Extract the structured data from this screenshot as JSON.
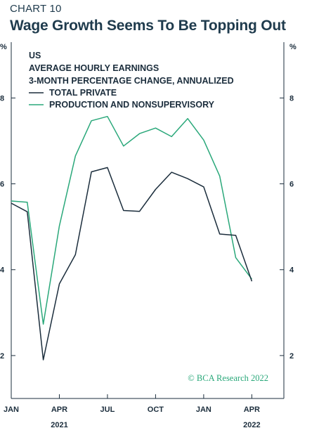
{
  "header": {
    "chart_number": "CHART 10",
    "title": "Wage Growth Seems To Be Topping Out"
  },
  "chart_data": {
    "type": "line",
    "region": "US",
    "subtitle_lines": [
      "AVERAGE HOURLY EARNINGS",
      "3-MONTH PERCENTAGE CHANGE, ANNUALIZED"
    ],
    "x": [
      "2021-01",
      "2021-02",
      "2021-03",
      "2021-04",
      "2021-05",
      "2021-06",
      "2021-07",
      "2021-08",
      "2021-09",
      "2021-10",
      "2021-11",
      "2021-12",
      "2022-01",
      "2022-02",
      "2022-03",
      "2022-04"
    ],
    "series": [
      {
        "name": "TOTAL PRIVATE",
        "color": "#1b2d3c",
        "values": [
          5.55,
          5.35,
          1.9,
          3.67,
          4.35,
          6.28,
          6.38,
          5.38,
          5.36,
          5.87,
          6.27,
          6.12,
          5.93,
          4.83,
          4.8,
          3.73
        ]
      },
      {
        "name": "PRODUCTION AND NONSUPERVISORY",
        "color": "#2aa87a",
        "values": [
          5.6,
          5.57,
          2.73,
          5.02,
          6.65,
          7.47,
          7.57,
          6.88,
          7.17,
          7.3,
          7.1,
          7.52,
          7.02,
          6.18,
          4.28,
          3.78
        ]
      }
    ],
    "y_axis": {
      "unit": "%",
      "ticks": [
        2,
        4,
        6,
        8
      ],
      "range": [
        1,
        9.3
      ]
    },
    "x_axis": {
      "ticks": [
        {
          "label": "JAN",
          "month": "2021-01"
        },
        {
          "label": "APR",
          "month": "2021-04"
        },
        {
          "label": "JUL",
          "month": "2021-07"
        },
        {
          "label": "OCT",
          "month": "2021-10"
        },
        {
          "label": "JAN",
          "month": "2022-01"
        },
        {
          "label": "APR",
          "month": "2022-04"
        }
      ],
      "year_labels": [
        {
          "label": "2021",
          "month": "2021-04"
        },
        {
          "label": "2022",
          "month": "2022-04"
        }
      ],
      "range": [
        "2021-01",
        "2022-06"
      ]
    },
    "grid": false,
    "legend_position": "top-left"
  },
  "credit": {
    "text": "© BCA Research 2022",
    "color": "#2aa87a"
  }
}
